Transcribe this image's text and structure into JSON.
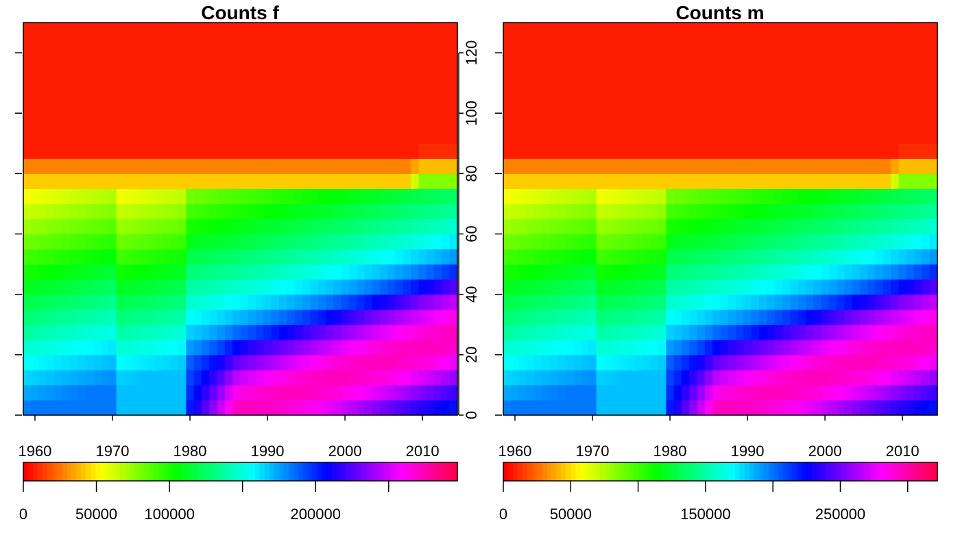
{
  "chart_data": [
    {
      "type": "heatmap",
      "title": "Counts f",
      "x_range": [
        1958.5,
        2014.5
      ],
      "y_range": [
        0,
        130
      ],
      "x_ticks": [
        "1960",
        "1970",
        "1980",
        "1990",
        "2000",
        "2010"
      ],
      "y_ticks": [
        "0",
        "20",
        "40",
        "60",
        "80",
        "100",
        "120"
      ],
      "y_axis_side": "right",
      "colorbar": {
        "position": "bottom",
        "range": [
          0,
          297000
        ],
        "ticks": [
          0,
          50000,
          100000,
          150000,
          200000,
          250000
        ],
        "labels": [
          "0",
          "50000",
          "100000",
          "",
          "200000",
          ""
        ]
      },
      "palette": "rainbow (red → yellow → green → cyan → blue → magenta → red)",
      "peak_count": 297000
    },
    {
      "type": "heatmap",
      "title": "Counts m",
      "x_range": [
        1958.5,
        2014.5
      ],
      "y_range": [
        0,
        130
      ],
      "x_ticks": [
        "1960",
        "1970",
        "1980",
        "1990",
        "2000",
        "2010"
      ],
      "y_ticks": [],
      "colorbar": {
        "position": "bottom",
        "range": [
          0,
          322000
        ],
        "ticks": [
          0,
          50000,
          100000,
          150000,
          200000,
          250000,
          300000
        ],
        "labels": [
          "0",
          "50000",
          "",
          "150000",
          "",
          "250000",
          ""
        ]
      },
      "palette": "rainbow (red → yellow → green → cyan → blue → magenta → red)",
      "peak_count": 322000
    }
  ]
}
